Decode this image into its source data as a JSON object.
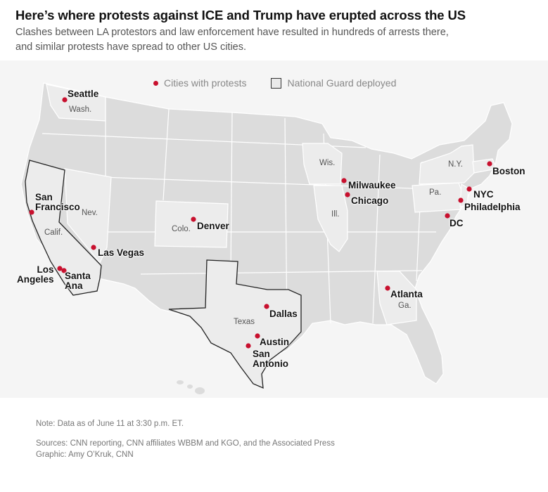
{
  "header": {
    "title": "Here’s where protests against ICE and Trump have erupted across the US",
    "subtitle_line1": "Clashes between LA protestors and law enforcement have resulted in hundreds of arrests there,",
    "subtitle_line2": "and similar protests have spread to other US cities."
  },
  "legend": {
    "cities": "Cities with protests",
    "guard": "National Guard deployed"
  },
  "colors": {
    "dot": "#c8102e",
    "state_fill": "#dcdcdc",
    "highlight_fill": "#ececec",
    "guard_outline": "#222222"
  },
  "state_labels": {
    "wash": "Wash.",
    "nev": "Nev.",
    "calif": "Calif.",
    "colo": "Colo.",
    "texas": "Texas",
    "wis": "Wis.",
    "ill": "Ill.",
    "ga": "Ga.",
    "pa": "Pa.",
    "ny": "N.Y."
  },
  "cities": {
    "seattle": "Seattle",
    "sanfrancisco": "San\nFrancisco",
    "losangeles": "Los\nAngeles",
    "santaana": "Santa\nAna",
    "lasvegas": "Las Vegas",
    "denver": "Denver",
    "dallas": "Dallas",
    "austin": "Austin",
    "sanantonio": "San\nAntonio",
    "milwaukee": "Milwaukee",
    "chicago": "Chicago",
    "atlanta": "Atlanta",
    "boston": "Boston",
    "nyc": "NYC",
    "philadelphia": "Philadelphia",
    "dc": "DC"
  },
  "notes": {
    "note": "Note: Data as of June 11 at 3:30 p.m. ET.",
    "sources": "Sources: CNN reporting, CNN affiliates WBBM and KGO, and the Associated Press",
    "graphic": "Graphic: Amy O’Kruk, CNN"
  }
}
